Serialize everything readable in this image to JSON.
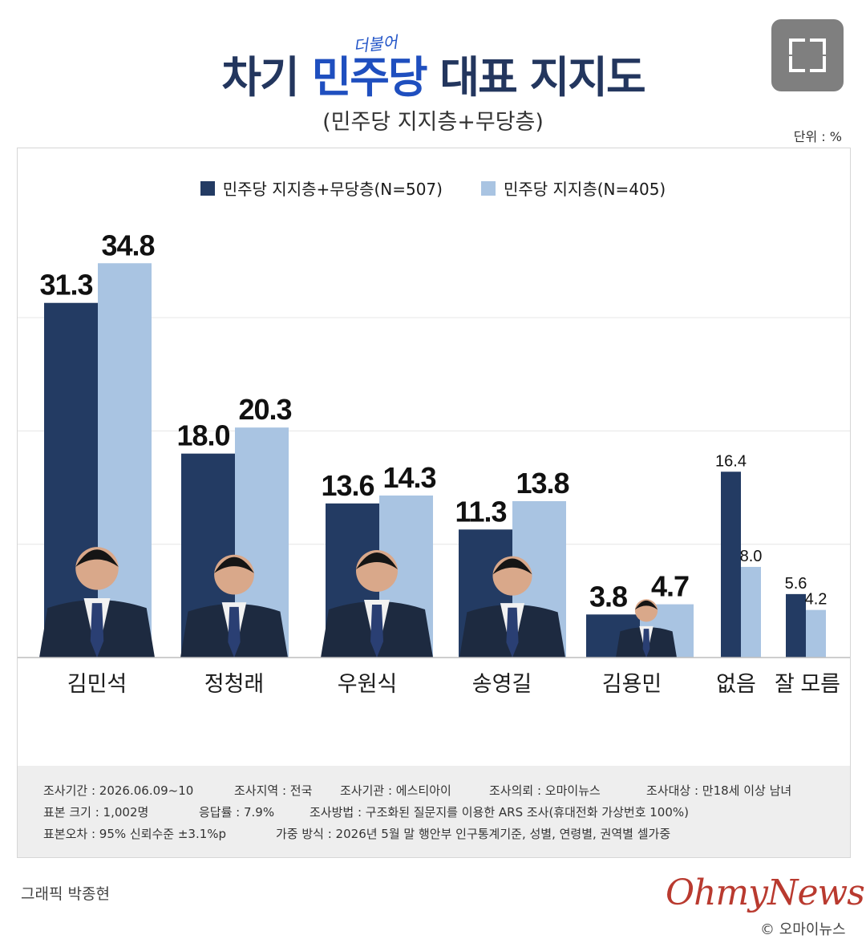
{
  "header": {
    "title_pre": "차기",
    "title_party": "민주당",
    "title_party_tag": "더불어",
    "title_post": "대표 지지도",
    "subtitle": "(민주당 지지층+무당층)",
    "unit": "단위 : %"
  },
  "legend": [
    {
      "label": "민주당 지지층+무당층(N=507)",
      "color": "#233b63"
    },
    {
      "label": "민주당 지지층(N=405)",
      "color": "#a9c4e2"
    }
  ],
  "chart_data": {
    "type": "bar",
    "categories": [
      "김민석",
      "정청래",
      "우원식",
      "송영길",
      "김용민",
      "없음",
      "잘 모름"
    ],
    "series": [
      {
        "name": "민주당 지지층+무당층(N=507)",
        "color": "#233b63",
        "values": [
          31.3,
          18.0,
          13.6,
          11.3,
          3.8,
          16.4,
          5.6
        ],
        "labels": [
          "31.3",
          "18.0",
          "13.6",
          "11.3",
          "3.8",
          "16.4",
          "5.6"
        ]
      },
      {
        "name": "민주당 지지층(N=405)",
        "color": "#a9c4e2",
        "values": [
          34.8,
          20.3,
          14.3,
          13.8,
          4.7,
          8.0,
          4.2
        ],
        "labels": [
          "34.8",
          "20.3",
          "14.3",
          "13.8",
          "4.7",
          "8.0",
          "4.2"
        ]
      }
    ],
    "ylim": [
      0,
      40
    ],
    "grid": true,
    "legend_position": "top-center",
    "photos": [
      "avatar",
      "avatar",
      "avatar",
      "avatar",
      "avatar",
      "none",
      "none"
    ]
  },
  "survey_info": {
    "row1": [
      "조사기간 : 2026.06.09~10",
      "조사지역 : 전국",
      "조사기관 : 에스티아이",
      "조사의뢰 : 오마이뉴스",
      "조사대상 : 만18세 이상 남녀"
    ],
    "row2": [
      "표본 크기 : 1,002명",
      "응답률 : 7.9%",
      "조사방법 : 구조화된 질문지를 이용한 ARS 조사(휴대전화 가상번호 100%)"
    ],
    "row3": [
      "표본오차 : 95% 신뢰수준 ±3.1%p",
      "가중 방식 : 2026년 5월 말 행안부 인구통계기준, 성별, 연령별, 권역별 셀가중"
    ]
  },
  "footer": {
    "credit": "그래픽 박종현",
    "logo": "OhmyNews",
    "logo_sub": "© 오마이뉴스"
  },
  "controls": {
    "expand_icon": "expand-icon"
  }
}
